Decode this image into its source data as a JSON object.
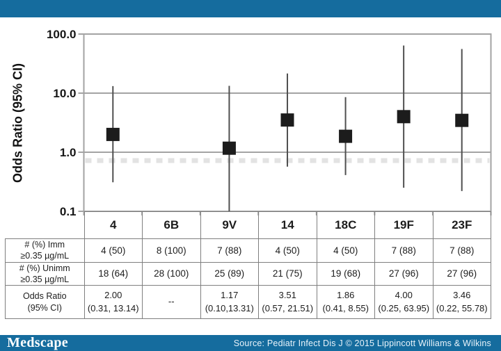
{
  "page": {
    "background": "#ffffff",
    "brand_blue": "#156c9e"
  },
  "chart_data": {
    "type": "scatter",
    "subtype": "forest-plot",
    "title": "",
    "xlabel": "",
    "ylabel": "Odds Ratio (95% CI)",
    "y_scale": "log",
    "ylim": [
      0.1,
      100.0
    ],
    "y_tick_values": [
      100.0,
      10.0,
      1.0,
      0.1
    ],
    "y_tick_labels": [
      "100.0",
      "10.0",
      "1.0",
      "0.1"
    ],
    "categories": [
      "4",
      "6B",
      "9V",
      "14",
      "18C",
      "19F",
      "23F"
    ],
    "series": [
      {
        "name": "Odds Ratio with 95% CI",
        "marker": "filled-square",
        "points": [
          {
            "category": "4",
            "odds_ratio": 2.0,
            "ci_lower": 0.31,
            "ci_upper": 13.14
          },
          {
            "category": "6B",
            "odds_ratio": null,
            "ci_lower": null,
            "ci_upper": null
          },
          {
            "category": "9V",
            "odds_ratio": 1.17,
            "ci_lower": 0.1,
            "ci_upper": 13.31
          },
          {
            "category": "14",
            "odds_ratio": 3.51,
            "ci_lower": 0.57,
            "ci_upper": 21.51
          },
          {
            "category": "18C",
            "odds_ratio": 1.86,
            "ci_lower": 0.41,
            "ci_upper": 8.55
          },
          {
            "category": "19F",
            "odds_ratio": 4.0,
            "ci_lower": 0.25,
            "ci_upper": 63.95
          },
          {
            "category": "23F",
            "odds_ratio": 3.46,
            "ci_lower": 0.22,
            "ci_upper": 55.78
          }
        ]
      }
    ],
    "grid": "horizontal major gridlines at each decade, light dashed minor line below 1.0",
    "legend": "none",
    "colors": {
      "marker": "#1c1c1c",
      "whisker": "#4f4f4f",
      "gridline": "#a3a3a3",
      "dashed_minor": "#e3e3e3"
    }
  },
  "table": {
    "column_headers": [
      "4",
      "6B",
      "9V",
      "14",
      "18C",
      "19F",
      "23F"
    ],
    "rows": [
      {
        "label": [
          "# (%) Imm",
          "≥0.35 µg/mL"
        ],
        "values": [
          [
            "4 (50)"
          ],
          [
            "8 (100)"
          ],
          [
            "7 (88)"
          ],
          [
            "4 (50)"
          ],
          [
            "4 (50)"
          ],
          [
            "7 (88)"
          ],
          [
            "7 (88)"
          ]
        ]
      },
      {
        "label": [
          "# (%) Unimm",
          "≥0.35 µg/mL"
        ],
        "values": [
          [
            "18 (64)"
          ],
          [
            "28 (100)"
          ],
          [
            "25 (89)"
          ],
          [
            "21 (75)"
          ],
          [
            "19 (68)"
          ],
          [
            "27 (96)"
          ],
          [
            "27 (96)"
          ]
        ]
      },
      {
        "label": [
          "Odds Ratio",
          "(95% CI)"
        ],
        "values": [
          [
            "2.00",
            "(0.31, 13.14)"
          ],
          [
            "--"
          ],
          [
            "1.17",
            "(0.10,13.31)"
          ],
          [
            "3.51",
            "(0.57, 21.51)"
          ],
          [
            "1.86",
            "(0.41, 8.55)"
          ],
          [
            "4.00",
            "(0.25, 63.95)"
          ],
          [
            "3.46",
            "(0.22, 55.78)"
          ]
        ]
      }
    ]
  },
  "footer": {
    "logo_text": "Medscape",
    "source_text": "Source: Pediatr Infect Dis J © 2015 Lippincott Williams & Wilkins"
  }
}
